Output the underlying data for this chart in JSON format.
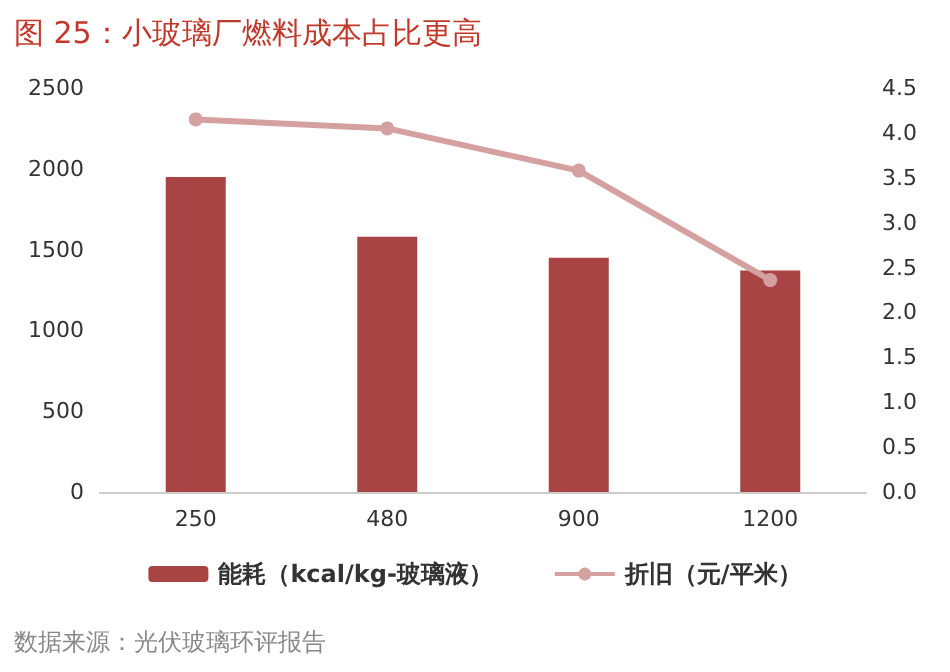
{
  "chart_data": {
    "type": "bar",
    "title": "图 25：小玻璃厂燃料成本占比更高",
    "categories": [
      "250",
      "480",
      "900",
      "1200"
    ],
    "series": [
      {
        "name": "能耗（kcal/kg-玻璃液）",
        "color": "#a84444",
        "values": [
          1950,
          1580,
          1450,
          1370
        ]
      },
      {
        "name": "折旧（元/平米）",
        "type": "line",
        "axis": "y2",
        "color": "#d4a0a0",
        "values": [
          4.15,
          4.05,
          3.58,
          2.36
        ]
      }
    ],
    "ylim": [
      0,
      2500
    ],
    "yticks": [
      0,
      500,
      1000,
      1500,
      2000,
      2500
    ],
    "y2lim": [
      0,
      4.5
    ],
    "y2ticks": [
      {
        "value": 0,
        "label": "0.0"
      },
      {
        "value": 0.5,
        "label": "0.5"
      },
      {
        "value": 1,
        "label": "1.0"
      },
      {
        "value": 1.5,
        "label": "1.5"
      },
      {
        "value": 2,
        "label": "2.0"
      },
      {
        "value": 2.5,
        "label": "2.5"
      },
      {
        "value": 3,
        "label": "3.0"
      },
      {
        "value": 3.5,
        "label": "3.5"
      },
      {
        "value": 4,
        "label": "4.0"
      },
      {
        "value": 4.5,
        "label": "4.5"
      }
    ],
    "grid": false,
    "legend": "bottom",
    "marker": "circle",
    "annotations": [
      "数据来源：光伏玻璃环评报告"
    ]
  }
}
